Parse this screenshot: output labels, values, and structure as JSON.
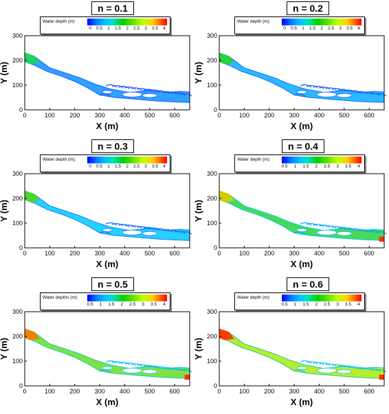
{
  "panels": [
    {
      "title": "n = 0.1",
      "legend_label": "Water depth (m)",
      "ticks": [
        "0",
        "0.5",
        "1",
        "1.5",
        "2",
        "2.5",
        "3",
        "3.5",
        "4"
      ],
      "depth_level": 0.1
    },
    {
      "title": "n = 0.2",
      "legend_label": "Water depth (m):",
      "ticks": [
        "0",
        "0.5",
        "1",
        "1.5",
        "2",
        "2.5",
        "3",
        "3.5",
        "4"
      ],
      "depth_level": 0.15
    },
    {
      "title": "n = 0.3",
      "legend_label": "Water depth (m):",
      "ticks": [
        "0",
        "0.5",
        "1",
        "1.5",
        "2",
        "2.5",
        "3",
        "3.5",
        "4"
      ],
      "depth_level": 0.2
    },
    {
      "title": "n = 0.4",
      "legend_label": "Water depth (m):",
      "ticks": [
        "0.5",
        "1",
        "1.5",
        "2",
        "2.5",
        "3",
        "3.5",
        "4"
      ],
      "depth_level": 0.45
    },
    {
      "title": "n = 0.5",
      "legend_label": "Water depths (m):",
      "ticks": [
        "0.5",
        "1",
        "1.5",
        "2",
        "2.5",
        "3",
        "3.5",
        "4"
      ],
      "depth_level": 0.55
    },
    {
      "title": "n = 0.6",
      "legend_label": "Water depth (m):",
      "ticks": [
        "0.5",
        "1",
        "1.5",
        "2",
        "2.5",
        "3",
        "3.5",
        "4"
      ],
      "depth_level": 0.65
    }
  ],
  "axes": {
    "xlabel": "X (m)",
    "ylabel": "Y (m)",
    "xticks": [
      "0",
      "100",
      "200",
      "300",
      "400",
      "500",
      "600"
    ],
    "yticks": [
      "0",
      "100",
      "200",
      "300"
    ],
    "xlim": [
      0,
      660
    ],
    "ylim": [
      0,
      300
    ]
  },
  "colors": {
    "shallow": "#1e3cff",
    "mid": "#00c8ff",
    "green": "#30d040",
    "deep": "#ff3000"
  }
}
